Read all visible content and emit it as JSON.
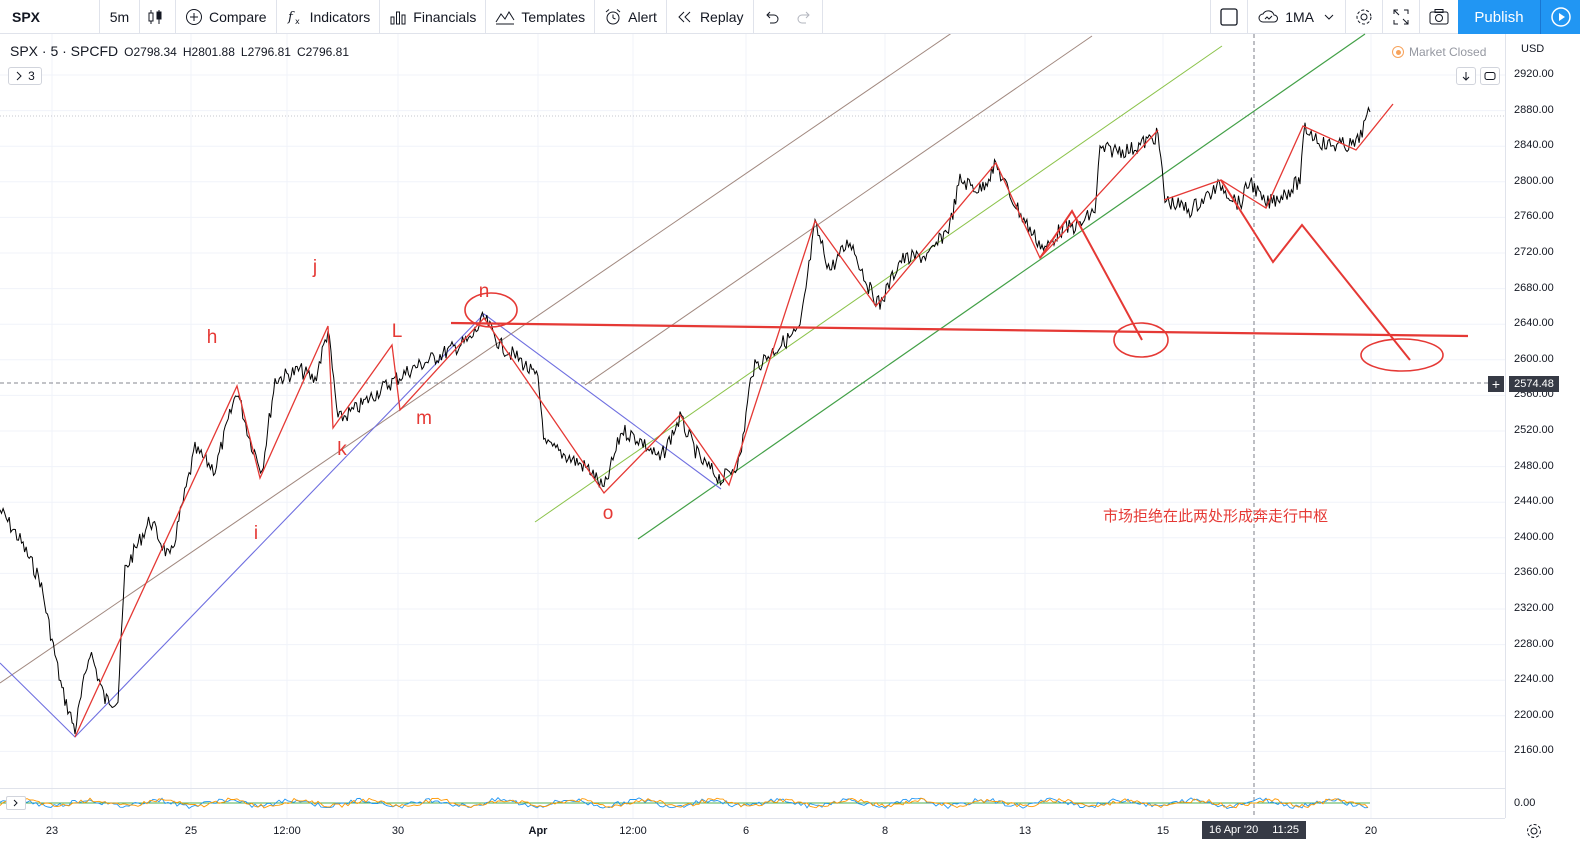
{
  "toolbar": {
    "symbol": "SPX",
    "interval": "5m",
    "compare": "Compare",
    "indicators": "Indicators",
    "financials": "Financials",
    "templates": "Templates",
    "alert": "Alert",
    "replay": "Replay",
    "layout": "1MA",
    "publish": "Publish"
  },
  "legend": {
    "symbol": "SPX · 5 · SPCFD",
    "open": "O2798.34",
    "high": "H2801.88",
    "low": "L2796.81",
    "close": "C2796.81",
    "indicator_count": "3"
  },
  "status": {
    "market": "Market Closed"
  },
  "price_axis": {
    "currency": "USD",
    "labels": [
      "2920.00",
      "2880.00",
      "2840.00",
      "2800.00",
      "2760.00",
      "2720.00",
      "2680.00",
      "2640.00",
      "2600.00",
      "2560.00",
      "2520.00",
      "2480.00",
      "2440.00",
      "2400.00",
      "2360.00",
      "2320.00",
      "2280.00",
      "2240.00",
      "2200.00",
      "2160.00"
    ],
    "current_price": "2574.48",
    "oscillator_zero": "0.00"
  },
  "time_axis": {
    "labels": [
      "23",
      "25",
      "12:00",
      "30",
      "Apr",
      "12:00",
      "6",
      "8",
      "13",
      "15",
      "20"
    ],
    "cursor_date": "16 Apr '20",
    "cursor_time": "11:25"
  },
  "wave_labels": [
    "h",
    "i",
    "j",
    "k",
    "L",
    "m",
    "n",
    "o"
  ],
  "annotation": "市场拒绝在此两处形成奔走行中枢",
  "colors": {
    "accent": "#2196f3",
    "drawing": "#e53935",
    "candle": "#000000",
    "trend_blue": "#6f6fe0",
    "channel_brown": "#a1887f",
    "channel_green": "#43a047"
  }
}
